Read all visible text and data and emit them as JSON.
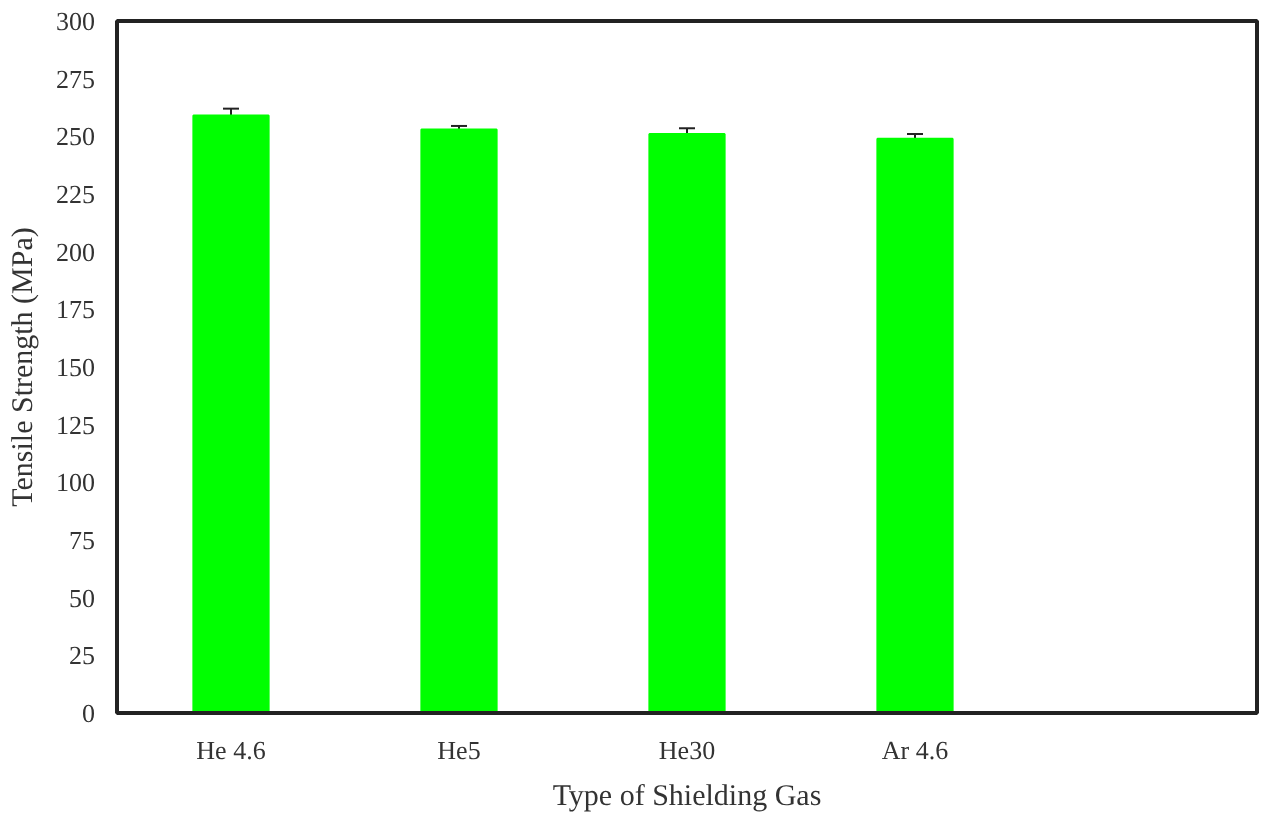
{
  "chart_data": {
    "type": "bar",
    "xlabel": "Type of Shielding Gas",
    "ylabel": "Tensile Strength (MPa)",
    "categories": [
      "He 4.6",
      "He5",
      "He30",
      "Ar 4.6",
      null
    ],
    "values": [
      259,
      253,
      251,
      249,
      null
    ],
    "errors": [
      3,
      1.5,
      2.5,
      2,
      null
    ],
    "color": "#00ff00",
    "ylim": [
      0,
      300
    ],
    "yticks": [
      0,
      25,
      50,
      75,
      100,
      125,
      150,
      175,
      200,
      225,
      250,
      275,
      300
    ],
    "grid": false
  }
}
